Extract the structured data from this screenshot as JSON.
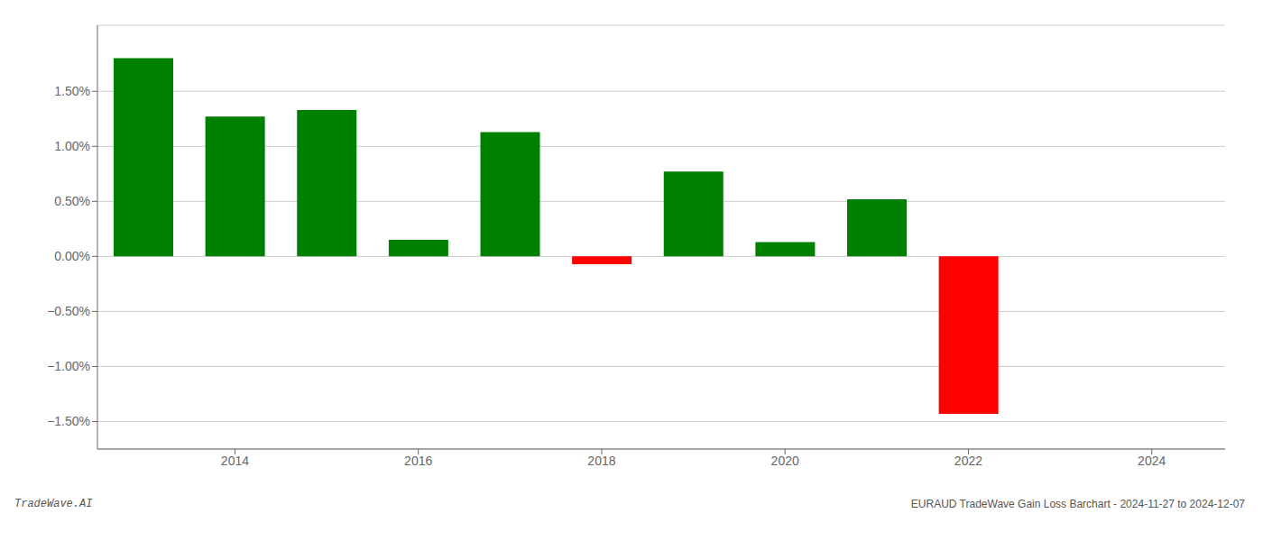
{
  "chart_data": {
    "type": "bar",
    "x": [
      2013,
      2014,
      2015,
      2016,
      2017,
      2018,
      2019,
      2020,
      2021,
      2022
    ],
    "values": [
      1.8,
      1.27,
      1.33,
      0.15,
      1.13,
      -0.07,
      0.77,
      0.13,
      0.52,
      -1.43
    ],
    "colors": [
      "#008000",
      "#008000",
      "#008000",
      "#008000",
      "#008000",
      "#ff0000",
      "#008000",
      "#008000",
      "#008000",
      "#ff0000"
    ],
    "xlim": [
      2012.5,
      2024.8
    ],
    "xticks": [
      2014,
      2016,
      2018,
      2020,
      2022,
      2024
    ],
    "ylim": [
      -1.75,
      2.1
    ],
    "yticks": [
      {
        "value": -1.5,
        "label": "−1.50%"
      },
      {
        "value": -1.0,
        "label": "−1.00%"
      },
      {
        "value": -0.5,
        "label": "−0.50%"
      },
      {
        "value": 0.0,
        "label": "0.00%"
      },
      {
        "value": 0.5,
        "label": "0.50%"
      },
      {
        "value": 1.0,
        "label": "1.00%"
      },
      {
        "value": 1.5,
        "label": "1.50%"
      }
    ],
    "grid": true,
    "annotations": [
      "TradeWave.AI",
      "EURAUD TradeWave Gain Loss Barchart - 2024-11-27 to 2024-12-07"
    ]
  }
}
